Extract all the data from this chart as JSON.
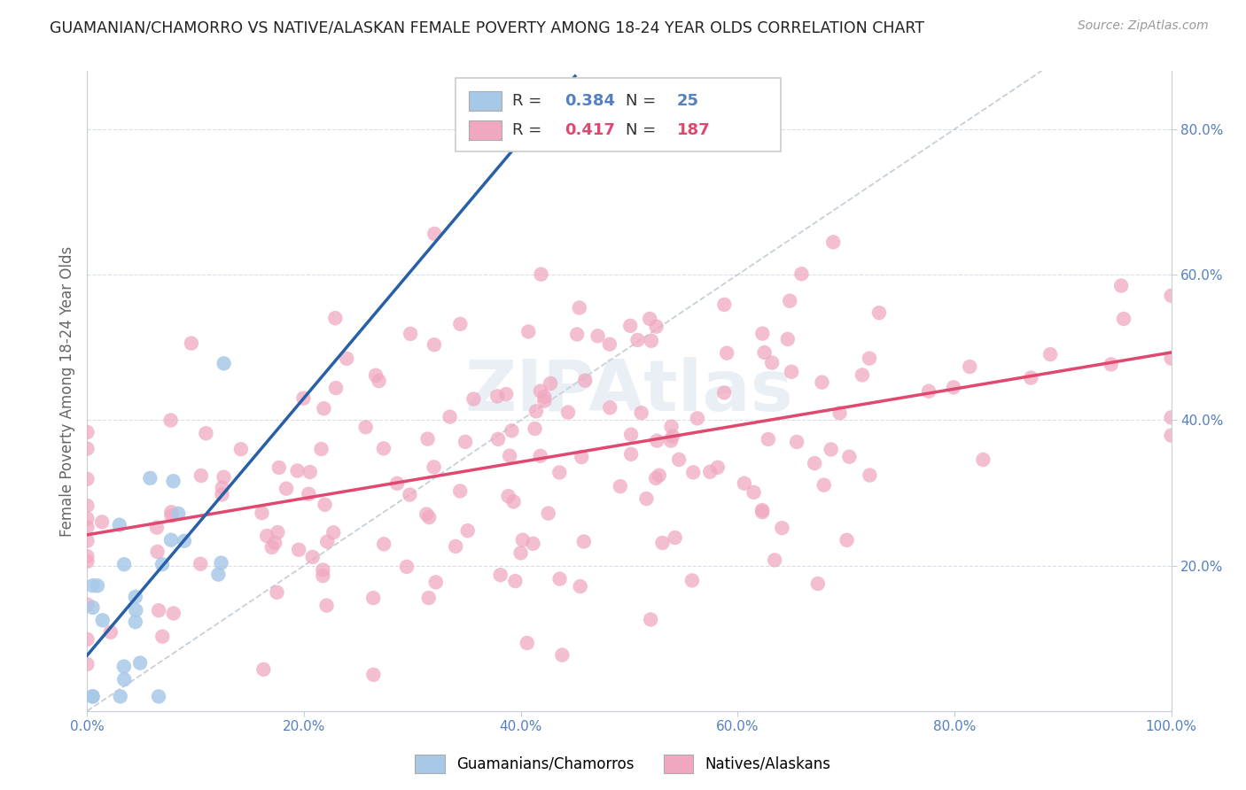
{
  "title": "GUAMANIAN/CHAMORRO VS NATIVE/ALASKAN FEMALE POVERTY AMONG 18-24 YEAR OLDS CORRELATION CHART",
  "source": "Source: ZipAtlas.com",
  "ylabel": "Female Poverty Among 18-24 Year Olds",
  "legend_label_blue": "Guamanians/Chamorros",
  "legend_label_pink": "Natives/Alaskans",
  "R_blue": 0.384,
  "N_blue": 25,
  "R_pink": 0.417,
  "N_pink": 187,
  "blue_color": "#a8c8e8",
  "pink_color": "#f0a8c0",
  "blue_line_color": "#2860a8",
  "pink_line_color": "#e04870",
  "diag_line_color": "#b8c4d0",
  "tick_color": "#5580c0",
  "grid_color": "#d8dde8",
  "spine_color": "#c8ccd8"
}
